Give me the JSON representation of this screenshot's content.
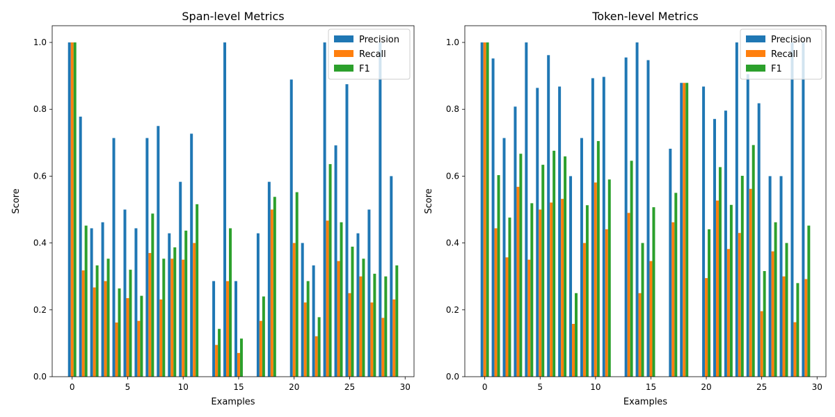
{
  "colors": {
    "Precision": "#1f77b4",
    "Recall": "#ff7f0e",
    "F1": "#2ca02c"
  },
  "chart_data": [
    {
      "type": "bar",
      "title": "Span-level Metrics",
      "xlabel": "Examples",
      "ylabel": "Score",
      "ylim": [
        0,
        1.05
      ],
      "xlim": [
        -1.8,
        30.8
      ],
      "legend_position": "top-right",
      "grid": false,
      "xticks": [
        "0",
        "5",
        "10",
        "15",
        "20",
        "25",
        "30"
      ],
      "yticks": [
        "0.0",
        "0.2",
        "0.4",
        "0.6",
        "0.8",
        "1.0"
      ],
      "x": [
        0,
        1,
        2,
        3,
        4,
        5,
        6,
        7,
        8,
        9,
        10,
        11,
        12,
        13,
        14,
        15,
        16,
        17,
        18,
        19,
        20,
        21,
        22,
        23,
        24,
        25,
        26,
        27,
        28,
        29
      ],
      "series": [
        {
          "name": "Precision",
          "values": [
            1.0,
            0.778,
            0.444,
            0.462,
            0.714,
            0.5,
            0.444,
            0.714,
            0.75,
            0.429,
            0.583,
            0.727,
            0.0,
            0.286,
            1.0,
            0.286,
            0.0,
            0.429,
            0.583,
            0.0,
            0.889,
            0.4,
            0.333,
            1.0,
            0.692,
            0.875,
            0.429,
            0.5,
            1.0,
            0.6
          ]
        },
        {
          "name": "Recall",
          "values": [
            1.0,
            0.318,
            0.267,
            0.286,
            0.162,
            0.235,
            0.167,
            0.37,
            0.231,
            0.353,
            0.35,
            0.4,
            0.0,
            0.095,
            0.286,
            0.071,
            0.0,
            0.167,
            0.5,
            0.0,
            0.4,
            0.222,
            0.121,
            0.467,
            0.346,
            0.25,
            0.3,
            0.222,
            0.176,
            0.231
          ]
        },
        {
          "name": "F1",
          "values": [
            1.0,
            0.452,
            0.333,
            0.353,
            0.264,
            0.32,
            0.242,
            0.488,
            0.353,
            0.387,
            0.437,
            0.516,
            0.0,
            0.143,
            0.444,
            0.114,
            0.0,
            0.24,
            0.538,
            0.0,
            0.552,
            0.286,
            0.178,
            0.636,
            0.462,
            0.389,
            0.353,
            0.308,
            0.3,
            0.333
          ]
        }
      ]
    },
    {
      "type": "bar",
      "title": "Token-level Metrics",
      "xlabel": "Examples",
      "ylabel": "Score",
      "ylim": [
        0,
        1.05
      ],
      "xlim": [
        -1.8,
        30.8
      ],
      "legend_position": "top-right",
      "grid": false,
      "xticks": [
        "0",
        "5",
        "10",
        "15",
        "20",
        "25",
        "30"
      ],
      "yticks": [
        "0.0",
        "0.2",
        "0.4",
        "0.6",
        "0.8",
        "1.0"
      ],
      "x": [
        0,
        1,
        2,
        3,
        4,
        5,
        6,
        7,
        8,
        9,
        10,
        11,
        12,
        13,
        14,
        15,
        16,
        17,
        18,
        19,
        20,
        21,
        22,
        23,
        24,
        25,
        26,
        27,
        28,
        29
      ],
      "series": [
        {
          "name": "Precision",
          "values": [
            1.0,
            0.952,
            0.714,
            0.808,
            1.0,
            0.864,
            0.962,
            0.868,
            0.6,
            0.714,
            0.893,
            0.897,
            0.0,
            0.955,
            1.0,
            0.947,
            0.0,
            0.682,
            0.879,
            0.0,
            0.868,
            0.771,
            0.796,
            1.0,
            0.905,
            0.818,
            0.6,
            0.6,
            1.0,
            1.0
          ]
        },
        {
          "name": "Recall",
          "values": [
            1.0,
            0.444,
            0.357,
            0.568,
            0.35,
            0.5,
            0.521,
            0.532,
            0.158,
            0.4,
            0.581,
            0.441,
            0.0,
            0.49,
            0.25,
            0.346,
            0.0,
            0.462,
            0.879,
            0.0,
            0.295,
            0.527,
            0.382,
            0.43,
            0.562,
            0.196,
            0.375,
            0.3,
            0.163,
            0.292
          ]
        },
        {
          "name": "F1",
          "values": [
            1.0,
            0.603,
            0.476,
            0.667,
            0.519,
            0.634,
            0.676,
            0.659,
            0.25,
            0.513,
            0.705,
            0.59,
            0.0,
            0.646,
            0.4,
            0.507,
            0.0,
            0.55,
            0.879,
            0.0,
            0.441,
            0.627,
            0.514,
            0.601,
            0.693,
            0.316,
            0.462,
            0.4,
            0.28,
            0.452
          ]
        }
      ]
    }
  ]
}
